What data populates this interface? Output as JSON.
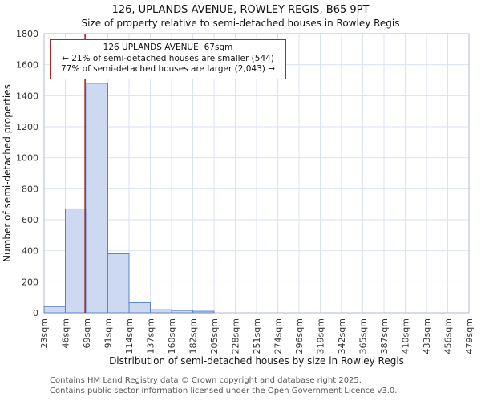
{
  "chart_data": {
    "type": "bar",
    "title": "126, UPLANDS AVENUE, ROWLEY REGIS, B65 9PT",
    "subtitle": "Size of property relative to semi-detached houses in Rowley Regis",
    "xlabel": "Distribution of semi-detached houses by size in Rowley Regis",
    "ylabel": "Number of semi-detached properties",
    "categories": [
      "23sqm",
      "46sqm",
      "69sqm",
      "91sqm",
      "114sqm",
      "137sqm",
      "160sqm",
      "182sqm",
      "205sqm",
      "228sqm",
      "251sqm",
      "274sqm",
      "296sqm",
      "319sqm",
      "342sqm",
      "365sqm",
      "387sqm",
      "410sqm",
      "433sqm",
      "456sqm",
      "479sqm"
    ],
    "values": [
      40,
      670,
      1480,
      380,
      65,
      20,
      15,
      10,
      0,
      0,
      0,
      0,
      0,
      0,
      0,
      0,
      0,
      0,
      0,
      0
    ],
    "ylim": [
      0,
      1800
    ],
    "ytick_step": 200,
    "x_range_sqm": [
      23,
      479
    ],
    "marker_sqm": 67,
    "grid": true,
    "legend": "none",
    "bar_fill": "#ccd9f1",
    "bar_stroke": "#5b84c8",
    "marker_color": "#9b1c1c",
    "grid_color": "#dbe2f0",
    "spine_color": "#b0bad0",
    "tick_label_color": "#333333"
  },
  "annotation": {
    "line1": "126 UPLANDS AVENUE: 67sqm",
    "line2": "← 21% of semi-detached houses are smaller (544)",
    "line3": "77% of semi-detached houses are larger (2,043) →"
  },
  "footer": {
    "line1": "Contains HM Land Registry data © Crown copyright and database right 2025.",
    "line2": "Contains public sector information licensed under the Open Government Licence v3.0."
  }
}
